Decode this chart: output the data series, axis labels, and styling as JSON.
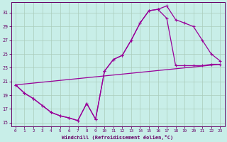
{
  "xlabel": "Windchill (Refroidissement éolien,°C)",
  "bg_color": "#c8eee8",
  "line_color": "#990099",
  "xlim": [
    -0.5,
    23.5
  ],
  "ylim": [
    14.5,
    32.5
  ],
  "xticks": [
    0,
    1,
    2,
    3,
    4,
    5,
    6,
    7,
    8,
    9,
    10,
    11,
    12,
    13,
    14,
    15,
    16,
    17,
    18,
    19,
    20,
    21,
    22,
    23
  ],
  "yticks": [
    15,
    17,
    19,
    21,
    23,
    25,
    27,
    29,
    31
  ],
  "curve1_x": [
    0,
    1,
    2,
    3,
    4,
    5,
    6,
    7,
    8,
    9,
    10,
    11,
    12,
    13,
    14,
    15,
    16,
    17,
    18,
    19,
    20,
    21,
    22,
    23
  ],
  "curve1_y": [
    20.5,
    19.3,
    18.5,
    17.5,
    16.5,
    16.0,
    15.7,
    15.3,
    17.8,
    15.5,
    22.5,
    24.2,
    24.8,
    27.0,
    29.5,
    31.3,
    31.5,
    32.0,
    30.0,
    29.5,
    29.0,
    27.0,
    25.0,
    24.0
  ],
  "curve2_x": [
    0,
    1,
    2,
    3,
    4,
    5,
    6,
    7,
    8,
    9,
    10,
    11,
    12,
    13,
    14,
    15,
    16,
    17,
    18,
    19,
    20,
    21,
    22,
    23
  ],
  "curve2_y": [
    20.5,
    19.3,
    18.5,
    17.5,
    16.5,
    16.0,
    15.7,
    15.3,
    17.8,
    15.5,
    22.5,
    24.2,
    24.8,
    27.0,
    29.5,
    31.3,
    31.5,
    30.2,
    23.3,
    23.3,
    23.3,
    23.3,
    23.5,
    23.5
  ],
  "curve3_x": [
    0,
    23
  ],
  "curve3_y": [
    20.5,
    23.5
  ]
}
